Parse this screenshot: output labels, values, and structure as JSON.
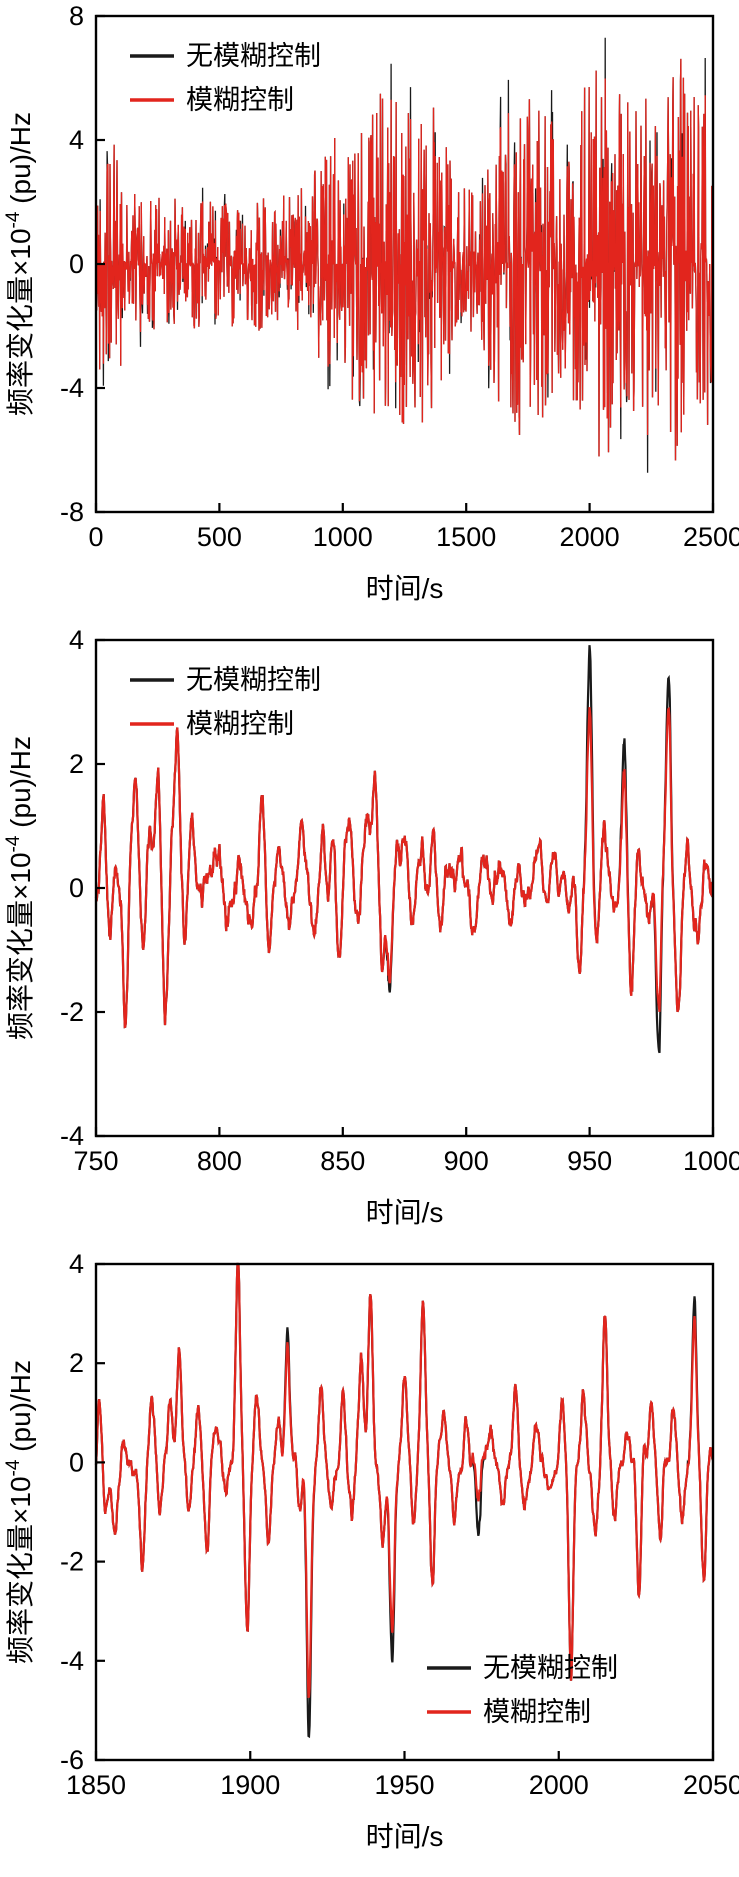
{
  "figure": {
    "background": "#ffffff",
    "description_labels": {
      "no_fuzzy": "无模糊控制",
      "fuzzy": "模糊控制"
    }
  },
  "chart_data": [
    {
      "type": "line",
      "title": "",
      "xlabel": "时间/s",
      "ylabel": {
        "pre": "频率变化量×10",
        "exp": "-4",
        "post": " (pu)/Hz"
      },
      "xlim": [
        0,
        2500
      ],
      "ylim": [
        -8,
        8
      ],
      "xticks": [
        0,
        500,
        1000,
        1500,
        2000,
        2500
      ],
      "yticks": [
        -8,
        -4,
        0,
        4,
        8
      ],
      "grid": false,
      "line_width": 1.3,
      "series": [
        {
          "name": "无模糊控制",
          "color": "#1a1a1a"
        },
        {
          "name": "模糊控制",
          "color": "#e2251d"
        }
      ],
      "legend": {
        "position": "top-left"
      },
      "signal": {
        "type": "noise",
        "seed": 42,
        "n": 1500,
        "power": 1.8,
        "black_extra": 1.22,
        "black_prob": 0.1,
        "envelope": [
          [
            0,
            3.2
          ],
          [
            60,
            4.2
          ],
          [
            150,
            2.4
          ],
          [
            300,
            2.2
          ],
          [
            500,
            2.0
          ],
          [
            700,
            2.2
          ],
          [
            850,
            2.6
          ],
          [
            950,
            4.4
          ],
          [
            1050,
            4.6
          ],
          [
            1150,
            5.6
          ],
          [
            1250,
            5.2
          ],
          [
            1350,
            5.8
          ],
          [
            1450,
            3.0
          ],
          [
            1550,
            2.2
          ],
          [
            1650,
            5.0
          ],
          [
            1750,
            6.2
          ],
          [
            1850,
            4.6
          ],
          [
            1950,
            5.4
          ],
          [
            2050,
            6.6
          ],
          [
            2150,
            5.2
          ],
          [
            2250,
            5.6
          ],
          [
            2350,
            7.0
          ],
          [
            2450,
            5.2
          ],
          [
            2500,
            6.0
          ]
        ]
      }
    },
    {
      "type": "line",
      "title": "",
      "xlabel": "时间/s",
      "ylabel": {
        "pre": "频率变化量×10",
        "exp": "-4",
        "post": " (pu)/Hz"
      },
      "xlim": [
        750,
        1000
      ],
      "ylim": [
        -4,
        4
      ],
      "xticks": [
        750,
        800,
        850,
        900,
        950,
        1000
      ],
      "yticks": [
        -4,
        -2,
        0,
        2,
        4
      ],
      "grid": false,
      "line_width": 2.2,
      "series": [
        {
          "name": "无模糊控制",
          "color": "#1a1a1a"
        },
        {
          "name": "模糊控制",
          "color": "#e2251d"
        }
      ],
      "legend": {
        "position": "top-left"
      },
      "signal": {
        "type": "pulses",
        "seed": 7,
        "n": 1200,
        "smooth": 6,
        "base_amp": 1.5,
        "width": 1.3,
        "pulses": [
          [
            753,
            1.6
          ],
          [
            756,
            -0.9
          ],
          [
            758,
            0.5
          ],
          [
            762,
            -2.15
          ],
          [
            766,
            1.3
          ],
          [
            769,
            -0.9
          ],
          [
            772,
            0.5
          ],
          [
            775,
            1.35
          ],
          [
            778,
            -1.55
          ],
          [
            781,
            0.7
          ],
          [
            783,
            2.3
          ],
          [
            786,
            -1.0
          ],
          [
            789,
            0.8
          ],
          [
            793,
            -0.5
          ],
          [
            798,
            0.4
          ],
          [
            803,
            -0.4
          ],
          [
            808,
            0.45
          ],
          [
            813,
            -0.5
          ],
          [
            817,
            1.35
          ],
          [
            820,
            -1.05
          ],
          [
            824,
            0.5
          ],
          [
            828,
            -0.45
          ],
          [
            833,
            0.55
          ],
          [
            838,
            -0.5
          ],
          [
            842,
            0.7
          ],
          [
            846,
            0.9
          ],
          [
            849,
            -0.8
          ],
          [
            853,
            0.95
          ],
          [
            857,
            -0.6
          ],
          [
            860,
            0.8
          ],
          [
            863,
            1.5
          ],
          [
            866,
            -1.3
          ],
          [
            869,
            -1.35,
            -1.5
          ],
          [
            872,
            0.95
          ],
          [
            875,
            1.0
          ],
          [
            878,
            -0.7
          ],
          [
            882,
            0.5
          ],
          [
            886,
            0.45
          ],
          [
            890,
            -0.35
          ],
          [
            894,
            0.5
          ],
          [
            898,
            0.6
          ],
          [
            902,
            -0.55
          ],
          [
            906,
            0.6
          ],
          [
            910,
            -0.45
          ],
          [
            914,
            0.4
          ],
          [
            918,
            -0.35
          ],
          [
            922,
            0.35
          ],
          [
            926,
            -0.4
          ],
          [
            930,
            0.45
          ],
          [
            933,
            -0.5
          ],
          [
            936,
            0.55
          ],
          [
            939,
            0.5
          ],
          [
            942,
            -0.6
          ],
          [
            946,
            -1.3
          ],
          [
            950,
            3.1,
            4.1
          ],
          [
            953,
            -0.95
          ],
          [
            956,
            0.7
          ],
          [
            960,
            -0.6
          ],
          [
            964,
            1.9,
            2.4
          ],
          [
            967,
            -1.35
          ],
          [
            970,
            0.8
          ],
          [
            974,
            -0.65
          ],
          [
            978,
            -2.2,
            -2.9
          ],
          [
            982,
            2.9,
            3.4
          ],
          [
            986,
            -1.5
          ],
          [
            990,
            0.6
          ],
          [
            994,
            -0.45
          ],
          [
            997,
            0.5
          ]
        ]
      }
    },
    {
      "type": "line",
      "title": "",
      "xlabel": "时间/s",
      "ylabel": {
        "pre": "频率变化量×10",
        "exp": "-4",
        "post": " (pu)/Hz"
      },
      "xlim": [
        1850,
        2050
      ],
      "ylim": [
        -6,
        4
      ],
      "xticks": [
        1850,
        1900,
        1950,
        2000,
        2050
      ],
      "yticks": [
        -6,
        -4,
        -2,
        0,
        2,
        4
      ],
      "grid": false,
      "line_width": 2.2,
      "series": [
        {
          "name": "无模糊控制",
          "color": "#1a1a1a"
        },
        {
          "name": "模糊控制",
          "color": "#e2251d"
        }
      ],
      "legend": {
        "position": "bottom-right"
      },
      "signal": {
        "type": "pulses",
        "seed": 13,
        "n": 1200,
        "smooth": 5,
        "base_amp": 1.0,
        "width": 1.0,
        "pulses": [
          [
            1851,
            1.6
          ],
          [
            1853,
            -0.9
          ],
          [
            1856,
            -1.2
          ],
          [
            1859,
            0.5
          ],
          [
            1862,
            -0.6
          ],
          [
            1865,
            -2.2
          ],
          [
            1868,
            1.2
          ],
          [
            1871,
            -0.8
          ],
          [
            1874,
            1.1
          ],
          [
            1877,
            2.2
          ],
          [
            1880,
            -1.0
          ],
          [
            1883,
            1.0
          ],
          [
            1886,
            -1.45
          ],
          [
            1889,
            0.8
          ],
          [
            1892,
            -0.7
          ],
          [
            1896,
            4.15
          ],
          [
            1899,
            -3.2
          ],
          [
            1902,
            1.2
          ],
          [
            1906,
            -1.5
          ],
          [
            1909,
            0.9
          ],
          [
            1912,
            2.3,
            2.6
          ],
          [
            1916,
            -1.1
          ],
          [
            1919,
            -4.7,
            -5.5
          ],
          [
            1923,
            1.4
          ],
          [
            1926,
            -1.0
          ],
          [
            1930,
            1.5
          ],
          [
            1933,
            -0.9
          ],
          [
            1936,
            2.2
          ],
          [
            1939,
            3.3
          ],
          [
            1943,
            -1.8
          ],
          [
            1946,
            -3.3,
            -3.9
          ],
          [
            1950,
            1.6
          ],
          [
            1953,
            -1.2
          ],
          [
            1956,
            3.2
          ],
          [
            1959,
            -2.5
          ],
          [
            1963,
            0.8
          ],
          [
            1966,
            -1.2
          ],
          [
            1970,
            0.9
          ],
          [
            1974,
            -0.9,
            -1.6
          ],
          [
            1978,
            0.7
          ],
          [
            1982,
            -0.9
          ],
          [
            1986,
            1.5
          ],
          [
            1989,
            -1.0
          ],
          [
            1993,
            0.8
          ],
          [
            1997,
            -0.7
          ],
          [
            2001,
            1.2
          ],
          [
            2004,
            -4.6
          ],
          [
            2008,
            1.3
          ],
          [
            2012,
            -1.1
          ],
          [
            2015,
            3.0
          ],
          [
            2018,
            -1.3
          ],
          [
            2022,
            0.9
          ],
          [
            2026,
            -2.4
          ],
          [
            2030,
            1.2
          ],
          [
            2033,
            -1.5
          ],
          [
            2037,
            1.1
          ],
          [
            2040,
            -0.9
          ],
          [
            2044,
            3.0,
            3.4
          ],
          [
            2047,
            -2.3
          ],
          [
            2049,
            0.6
          ]
        ]
      }
    }
  ]
}
